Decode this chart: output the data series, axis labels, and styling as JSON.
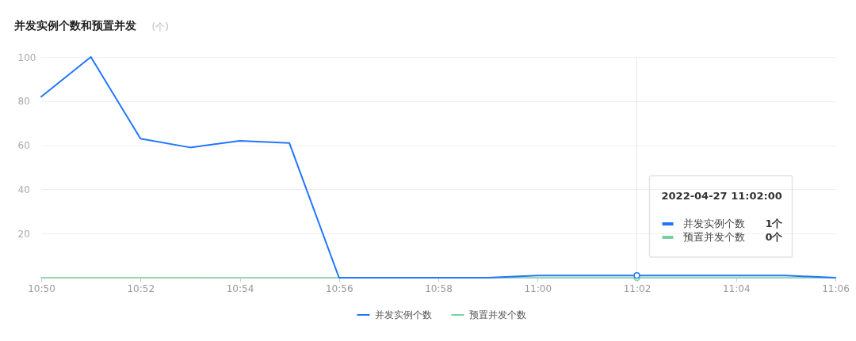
{
  "chart_data": {
    "type": "line",
    "title": "并发实例个数和预置并发",
    "subtitle": "(个)",
    "x": [
      "2022-04-27T10:50",
      "2022-04-27T10:51",
      "2022-04-27T10:52",
      "2022-04-27T10:53",
      "2022-04-27T10:54",
      "2022-04-27T10:55",
      "2022-04-27T10:56",
      "2022-04-27T10:57",
      "2022-04-27T10:58",
      "2022-04-27T10:59",
      "2022-04-27T11:00",
      "2022-04-27T11:01",
      "2022-04-27T11:02",
      "2022-04-27T11:03",
      "2022-04-27T11:04",
      "2022-04-27T11:05",
      "2022-04-27T11:06"
    ],
    "xlim": [
      "2022-04-27T10:50",
      "2022-04-27T11:06"
    ],
    "xticks": [
      {
        "value": "2022-04-27T10:50",
        "label": "10:50"
      },
      {
        "value": "2022-04-27T10:52",
        "label": "10:52"
      },
      {
        "value": "2022-04-27T10:54",
        "label": "10:54"
      },
      {
        "value": "2022-04-27T10:56",
        "label": "10:56"
      },
      {
        "value": "2022-04-27T10:58",
        "label": "10:58"
      },
      {
        "value": "2022-04-27T11:00",
        "label": "11:00"
      },
      {
        "value": "2022-04-27T11:02",
        "label": "11:02"
      },
      {
        "value": "2022-04-27T11:04",
        "label": "11:04"
      },
      {
        "value": "2022-04-27T11:06",
        "label": "11:06"
      }
    ],
    "ylim": [
      0,
      100
    ],
    "yticks": [
      20,
      40,
      60,
      80,
      100
    ],
    "series": [
      {
        "name": "并发实例个数",
        "color": "#2176ff",
        "values": [
          82,
          100,
          63,
          59,
          62,
          61,
          0,
          0,
          0,
          0,
          1,
          1,
          1,
          1,
          1,
          1,
          0
        ]
      },
      {
        "name": "预置并发个数",
        "color": "#76d3a0",
        "values": [
          0,
          0,
          0,
          0,
          0,
          0,
          0,
          0,
          0,
          0,
          0,
          0,
          0,
          0,
          0,
          0,
          0
        ]
      }
    ],
    "grid": "y",
    "legend": "bottom",
    "marker": "none",
    "line_style": "solid",
    "ref_lines": [
      {
        "axis": "x",
        "value": "2022-04-27T11:02",
        "color": "#e6e6e6"
      }
    ],
    "annotations": [
      {
        "text": "2022-04-27 11:02:00",
        "x": "2022-04-27T11:02"
      },
      "1个",
      "0个"
    ]
  }
}
